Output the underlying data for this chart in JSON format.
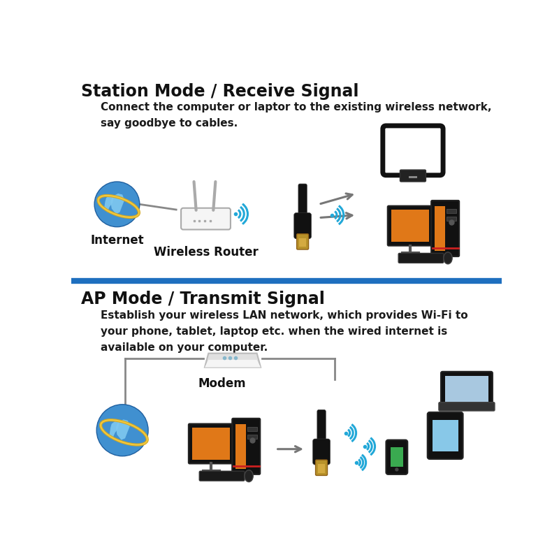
{
  "bg_color": "#ffffff",
  "divider_color": "#1e6fbf",
  "section1_title": "Station Mode / Receive Signal",
  "section2_title": "AP Mode / Transmit Signal",
  "section1_desc": "Connect the computer or laptor to the existing wireless network,\nsay goodbye to cables.",
  "section2_desc": "Establish your wireless LAN network, which provides Wi-Fi to\nyour phone, tablet, laptop etc. when the wired internet is\navailable on your computer.",
  "label_internet": "Internet",
  "label_router": "Wireless Router",
  "label_modem": "Modem",
  "title_fontsize": 17,
  "desc_fontsize": 11,
  "label_fontsize": 11,
  "wifi_color": "#22a8d8",
  "arrow_color": "#777777",
  "icon_dark": "#1a1a1a",
  "icon_gray": "#888888",
  "orange": "#e07818",
  "globe_blue": "#1565c0",
  "globe_land": "#4a9fd4",
  "globe_land2": "#ffffff",
  "router_body": "#f0f0f0",
  "modem_body": "#e8e8e8"
}
